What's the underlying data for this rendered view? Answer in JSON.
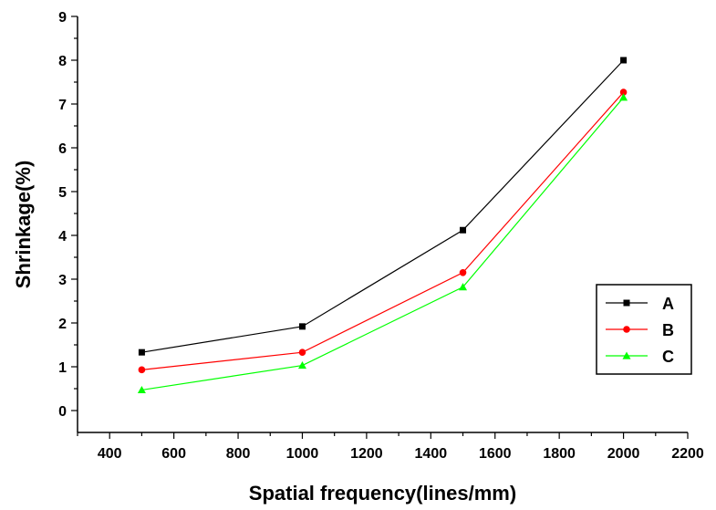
{
  "chart_data": {
    "type": "line",
    "title": "",
    "xlabel": "Spatial frequency(lines/mm)",
    "ylabel": "Shrinkage(%)",
    "xlim": [
      300,
      2200
    ],
    "ylim": [
      -0.5,
      9
    ],
    "xticks": [
      400,
      600,
      800,
      1000,
      1200,
      1400,
      1600,
      1800,
      2000,
      2200
    ],
    "yticks": [
      0,
      1,
      2,
      3,
      4,
      5,
      6,
      7,
      8,
      9
    ],
    "x": [
      500,
      1000,
      1500,
      2000
    ],
    "series": [
      {
        "name": "A",
        "values": [
          1.33,
          1.92,
          4.12,
          8.0
        ],
        "color": "#000000",
        "marker": "square"
      },
      {
        "name": "B",
        "values": [
          0.93,
          1.33,
          3.15,
          7.27
        ],
        "color": "#ff0000",
        "marker": "circle"
      },
      {
        "name": "C",
        "values": [
          0.47,
          1.03,
          2.82,
          7.15
        ],
        "color": "#00ff00",
        "marker": "triangle"
      }
    ],
    "grid": false,
    "legend_position": "right"
  }
}
